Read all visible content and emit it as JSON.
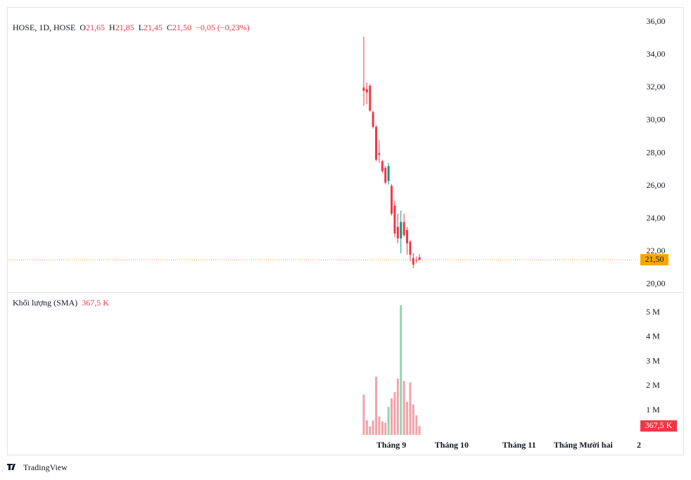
{
  "chart_data": {
    "type": "candlestick",
    "legend": [
      "HOSE, 1D, HOSE",
      "O",
      "21,65",
      "H",
      "21,85",
      "L",
      "21,45",
      "C",
      "21,50",
      "−0,05 (−0,23%)"
    ],
    "x": [
      0,
      1,
      2,
      3,
      4,
      5,
      6,
      7,
      8,
      9,
      10,
      11,
      12,
      13,
      14,
      15,
      16,
      17,
      18
    ],
    "open": [
      32.0,
      31.9,
      32.1,
      30.5,
      29.6,
      28.0,
      27.5,
      27.1,
      26.3,
      26.0,
      24.8,
      23.5,
      22.8,
      23.8,
      23.3,
      22.6,
      21.6,
      21.5,
      21.65
    ],
    "high": [
      35.1,
      32.3,
      32.2,
      30.6,
      29.7,
      28.8,
      27.6,
      27.2,
      27.4,
      26.1,
      25.1,
      24.3,
      24.5,
      24.3,
      23.5,
      22.7,
      21.9,
      21.7,
      21.85
    ],
    "low": [
      30.9,
      31.0,
      30.5,
      29.5,
      27.5,
      27.4,
      26.8,
      26.1,
      26.1,
      24.2,
      22.9,
      22.5,
      21.9,
      22.9,
      21.8,
      21.4,
      21.0,
      21.3,
      21.45
    ],
    "close": [
      31.8,
      31.7,
      30.6,
      29.6,
      27.6,
      27.9,
      26.9,
      26.2,
      27.2,
      24.3,
      23.1,
      22.8,
      23.8,
      23.0,
      22.5,
      21.8,
      21.2,
      21.45,
      21.5
    ],
    "up_color": "#089981",
    "down_color": "#f23645",
    "xlim": [
      -114.8,
      88.9
    ],
    "xticks": [
      {
        "value": 8.9,
        "label": "Tháng 9"
      },
      {
        "value": 28.4,
        "label": "Tháng 10"
      },
      {
        "value": 50.2,
        "label": "Tháng 11"
      },
      {
        "value": 70.9,
        "label": "Tháng Mười hai"
      },
      {
        "value": 88.9,
        "label": "2"
      }
    ],
    "ylim": [
      19.57,
      36.82
    ],
    "yticks": [
      {
        "value": 20,
        "label": "20,00"
      },
      {
        "value": 22,
        "label": "22,00"
      },
      {
        "value": 24,
        "label": "24,00"
      },
      {
        "value": 26,
        "label": "26,00"
      },
      {
        "value": 28,
        "label": "28,00"
      },
      {
        "value": 30,
        "label": "30,00"
      },
      {
        "value": 32,
        "label": "32,00"
      },
      {
        "value": 34,
        "label": "34,00"
      },
      {
        "value": 36,
        "label": "36,00"
      }
    ],
    "last_price": {
      "value": 21.5,
      "label": "21,50"
    },
    "last_price_color": "#f7a600",
    "volume": {
      "title": "Khối lượng (SMA)",
      "value_label": "367,5 K",
      "values": [
        1650000,
        600000,
        350000,
        600000,
        2380000,
        750000,
        550000,
        500000,
        1150000,
        1500000,
        1750000,
        2300000,
        5300000,
        2200000,
        1350000,
        2150000,
        1250000,
        800000,
        367500
      ],
      "up_color": "#8fd6b0",
      "down_color": "#f3a2aa",
      "ylim": [
        0,
        5690000
      ],
      "yticks": [
        {
          "value": 1000000,
          "label": "1 M"
        },
        {
          "value": 2000000,
          "label": "2 M"
        },
        {
          "value": 3000000,
          "label": "3 M"
        },
        {
          "value": 4000000,
          "label": "4 M"
        },
        {
          "value": 5000000,
          "label": "5 M"
        }
      ],
      "last": {
        "value": 367500,
        "label": "367,5 K"
      }
    },
    "brand": "TradingView"
  }
}
